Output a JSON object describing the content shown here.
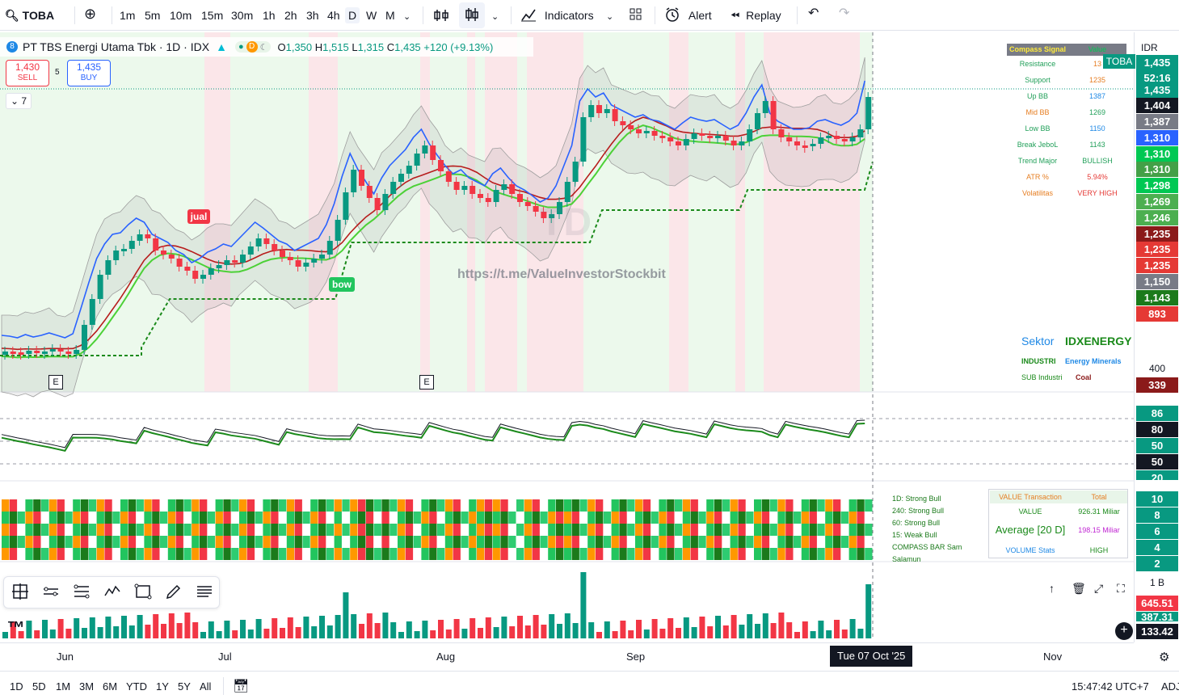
{
  "toolbar": {
    "symbol": "TOBA",
    "intervals": [
      "1m",
      "5m",
      "10m",
      "15m",
      "30m",
      "1h",
      "2h",
      "3h",
      "4h",
      "D",
      "W",
      "M"
    ],
    "active_interval": "D",
    "indicators_label": "Indicators",
    "alert_label": "Alert",
    "replay_label": "Replay"
  },
  "legend": {
    "title": "PT TBS Energi Utama Tbk · 1D · IDX",
    "badge_d": "D",
    "ohlc": {
      "o_label": "O",
      "o": "1,350",
      "h_label": "H",
      "h": "1,515",
      "l_label": "L",
      "l": "1,315",
      "c_label": "C",
      "c": "1,435",
      "change": "+120 (+9.13%)"
    },
    "sell_price": "1,430",
    "sell_label": "SELL",
    "spread": "5",
    "buy_price": "1,435",
    "buy_label": "BUY",
    "collapse_count": "7"
  },
  "compass_table": {
    "header_left": "Compass Signal",
    "header_right": "Value",
    "rows": [
      {
        "label": "Resistance",
        "value": "13",
        "label_color": "#22a05a",
        "value_color": "#e67e22"
      },
      {
        "label": "Support",
        "value": "1235",
        "label_color": "#22a05a",
        "value_color": "#e67e22"
      },
      {
        "label": "Up BB",
        "value": "1387",
        "label_color": "#22a05a",
        "value_color": "#1e88e5"
      },
      {
        "label": "Mid BB",
        "value": "1269",
        "label_color": "#e67e22",
        "value_color": "#22a05a"
      },
      {
        "label": "Low BB",
        "value": "1150",
        "label_color": "#22a05a",
        "value_color": "#1e88e5"
      },
      {
        "label": "Break JeboL",
        "value": "1143",
        "label_color": "#22a05a",
        "value_color": "#22a05a"
      },
      {
        "label": "Trend Major",
        "value": "BULLISH",
        "label_color": "#22a05a",
        "value_color": "#22a05a"
      },
      {
        "label": "ATR %",
        "value": "5.94%",
        "label_color": "#e67e22",
        "value_color": "#e53935"
      },
      {
        "label": "Volatilitas",
        "value": "VERY HIGH",
        "label_color": "#e67e22",
        "value_color": "#e53935"
      }
    ]
  },
  "sector": {
    "sektor_label": "Sektor",
    "sektor_value": "IDXENERGY",
    "industri_label": "INDUSTRI",
    "industri_value": "Energy Minerals",
    "sub_label": "SUB Industri",
    "sub_value": "Coal"
  },
  "chart_labels": {
    "jual": "jual",
    "bow": "bow",
    "earnings": "E",
    "watermark_url": "https://t.me/ValueInvestorStockbit",
    "watermark_logo": "TD"
  },
  "compass_bar_legend": [
    "1D: Strong Bull",
    "240: Strong Bull",
    "60: Strong Bull",
    "15: Weak Bull",
    "COMPASS BAR Sam Salamun"
  ],
  "value_table": {
    "h1": "VALUE Transaction",
    "h2": "Total",
    "value_label": "VALUE",
    "value_total": "926.31 Miliar",
    "avg_label": "Average [20 D]",
    "avg_total": "198.15 Miliar",
    "stats_label": "VOLUME Stats",
    "stats_value": "HIGH"
  },
  "price_scale": {
    "currency": "IDR",
    "symbol_tag": "TOBA",
    "labels": [
      {
        "text": "1,435",
        "color": "#089981"
      },
      {
        "text": "52:16",
        "color": "#089981"
      },
      {
        "text": "1,435",
        "color": "#089981"
      },
      {
        "text": "1,404",
        "color": "#131722"
      },
      {
        "text": "1,387",
        "color": "#787b86"
      },
      {
        "text": "1,310",
        "color": "#2962ff"
      },
      {
        "text": "1,310",
        "color": "#00c853"
      },
      {
        "text": "1,310",
        "color": "#43a047"
      },
      {
        "text": "1,298",
        "color": "#00c853"
      },
      {
        "text": "1,269",
        "color": "#4caf50"
      },
      {
        "text": "1,246",
        "color": "#4caf50"
      },
      {
        "text": "1,235",
        "color": "#8b1a1a"
      },
      {
        "text": "1,235",
        "color": "#e53935"
      },
      {
        "text": "1,235",
        "color": "#e53935"
      },
      {
        "text": "1,150",
        "color": "#787b86"
      },
      {
        "text": "1,143",
        "color": "#1b7a1b"
      },
      {
        "text": "893",
        "color": "#e53935"
      }
    ],
    "pane2": [
      {
        "text": "400",
        "color": "none"
      },
      {
        "text": "339",
        "color": "#8b1a1a"
      }
    ],
    "osc": [
      {
        "text": "86",
        "color": "#089981"
      },
      {
        "text": "80",
        "color": "#131722"
      },
      {
        "text": "50",
        "color": "#089981"
      },
      {
        "text": "50",
        "color": "#131722"
      },
      {
        "text": "20",
        "color": "#089981"
      }
    ],
    "compass": [
      {
        "text": "10",
        "color": "#089981"
      },
      {
        "text": "8",
        "color": "#089981"
      },
      {
        "text": "6",
        "color": "#089981"
      },
      {
        "text": "4",
        "color": "#089981"
      },
      {
        "text": "2",
        "color": "#089981"
      }
    ],
    "volume": [
      {
        "text": "1 B",
        "color": "none"
      },
      {
        "text": "645.51",
        "color": "#f23645"
      },
      {
        "text": "387.31",
        "color": "#089981"
      },
      {
        "text": "133.42",
        "color": "#131722"
      }
    ]
  },
  "time_axis": {
    "labels": [
      "Jun",
      "Jul",
      "Aug",
      "Sep",
      "Nov"
    ],
    "crosshair_date": "Tue 07 Oct '25"
  },
  "bottom_bar": {
    "ranges": [
      "1D",
      "5D",
      "1M",
      "3M",
      "6M",
      "YTD",
      "1Y",
      "5Y",
      "All"
    ],
    "clock": "15:47:42 UTC+7",
    "adj": "ADJ"
  },
  "colors": {
    "bull": "#089981",
    "bear": "#f23645",
    "bull_zone": "#ecf9ec",
    "bear_zone": "#fbe6e9",
    "accent": "#2962ff"
  }
}
